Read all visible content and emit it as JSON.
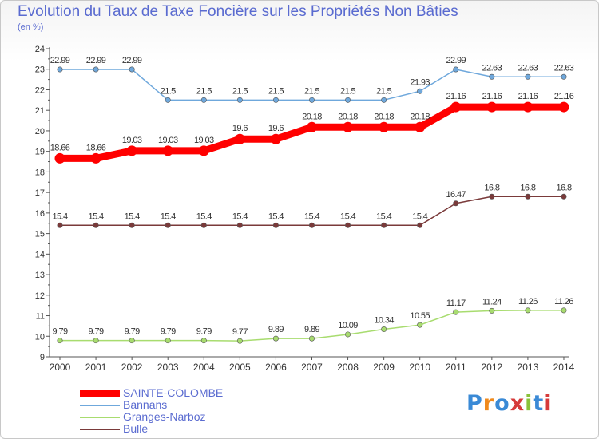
{
  "header": {
    "title": "Evolution du Taux de Taxe Foncière sur les Propriétés Non Bâties",
    "unit": "(en %)"
  },
  "logo": {
    "text": "Proxiti",
    "colors": [
      "#3a8ad6",
      "#f08a1c",
      "#3a8ad6",
      "#d63a3a",
      "#8ac23a",
      "#3a8ad6",
      "#d63a3a"
    ]
  },
  "chart_data": {
    "type": "line",
    "title": "Evolution du Taux de Taxe Foncière sur les Propriétés Non Bâties",
    "ylabel": "(en %)",
    "xlabel": "",
    "x": [
      "2000",
      "2001",
      "2002",
      "2003",
      "2004",
      "2005",
      "2006",
      "2007",
      "2008",
      "2009",
      "2010",
      "2011",
      "2012",
      "2013",
      "2014"
    ],
    "ylim": [
      9,
      24
    ],
    "yticks": [
      9,
      10,
      11,
      12,
      13,
      14,
      15,
      16,
      17,
      18,
      19,
      20,
      21,
      22,
      23,
      24
    ],
    "grid": false,
    "legend_position": "bottom-left",
    "series": [
      {
        "name": "SAINTE-COLOMBE",
        "color": "#ff0000",
        "values": [
          18.66,
          18.66,
          19.03,
          19.03,
          19.03,
          19.6,
          19.6,
          20.18,
          20.18,
          20.18,
          20.18,
          21.16,
          21.16,
          21.16,
          21.16
        ],
        "labels": [
          "18.66",
          "18.66",
          "19.03",
          "19.03",
          "19.03",
          "19.6",
          "19.6",
          "20.18",
          "20.18",
          "20.18",
          "20.18",
          "21.16",
          "21.16",
          "21.16",
          "21.16"
        ]
      },
      {
        "name": "Bannans",
        "color": "#6fa8dc",
        "values": [
          22.99,
          22.99,
          22.99,
          21.5,
          21.5,
          21.5,
          21.5,
          21.5,
          21.5,
          21.5,
          21.93,
          22.99,
          22.63,
          22.63,
          22.63
        ],
        "labels": [
          "22.99",
          "22.99",
          "22.99",
          "21.5",
          "21.5",
          "21.5",
          "21.5",
          "21.5",
          "21.5",
          "21.5",
          "21.93",
          "22.99",
          "22.63",
          "22.63",
          "22.63"
        ]
      },
      {
        "name": "Granges-Narboz",
        "color": "#a8dc6f",
        "values": [
          9.79,
          9.79,
          9.79,
          9.79,
          9.79,
          9.77,
          9.89,
          9.89,
          10.09,
          10.34,
          10.55,
          11.17,
          11.24,
          11.26,
          11.26
        ],
        "labels": [
          "9.79",
          "9.79",
          "9.79",
          "9.79",
          "9.79",
          "9.77",
          "9.89",
          "9.89",
          "10.09",
          "10.34",
          "10.55",
          "11.17",
          "11.24",
          "11.26",
          "11.26"
        ]
      },
      {
        "name": "Bulle",
        "color": "#7a3a3a",
        "values": [
          15.4,
          15.4,
          15.4,
          15.4,
          15.4,
          15.4,
          15.4,
          15.4,
          15.4,
          15.4,
          15.4,
          16.47,
          16.8,
          16.8,
          16.8
        ],
        "labels": [
          "15.4",
          "15.4",
          "15.4",
          "15.4",
          "15.4",
          "15.4",
          "15.4",
          "15.4",
          "15.4",
          "15.4",
          "15.4",
          "16.47",
          "16.8",
          "16.8",
          "16.8"
        ]
      }
    ]
  }
}
